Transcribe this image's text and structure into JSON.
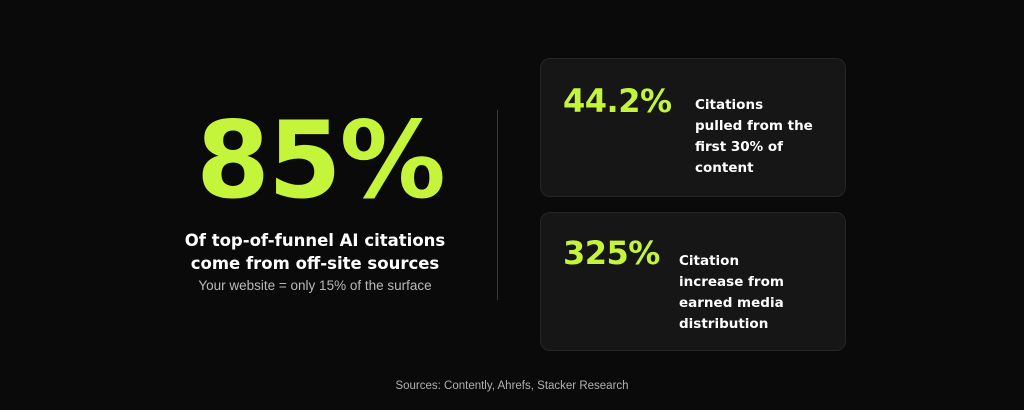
{
  "hero": {
    "stat": "85%",
    "headline_line1": "Of top-of-funnel AI citations",
    "headline_line2": "come from off-site sources",
    "subtext": "Your website = only 15% of the surface"
  },
  "cards": [
    {
      "stat": "44.2%",
      "description": "Citations pulled from the first 30% of content"
    },
    {
      "stat": "325%",
      "description": "Citation increase from earned media distribution"
    }
  ],
  "footer": {
    "sources": "Sources: Contently, Ahrefs, Stacker Research"
  },
  "colors": {
    "background": "#0a0a0a",
    "accent": "#c5f53a",
    "card": "#161616"
  }
}
